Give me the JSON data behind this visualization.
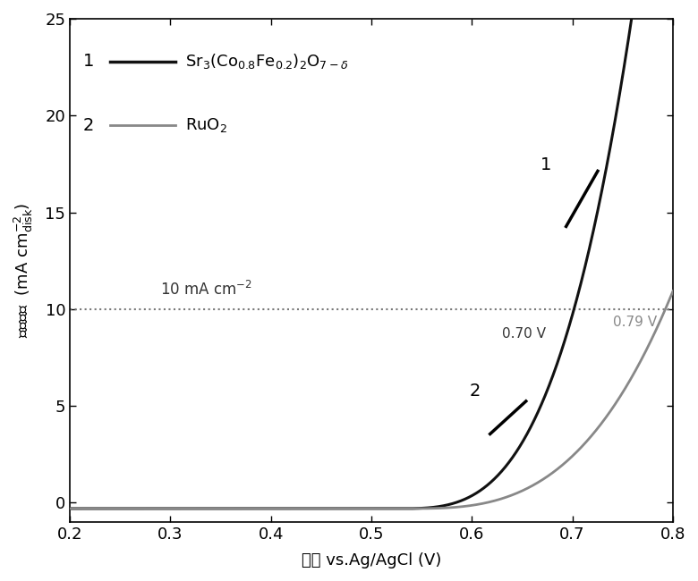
{
  "xlim": [
    0.2,
    0.8
  ],
  "ylim": [
    -1.0,
    25
  ],
  "xticks": [
    0.2,
    0.3,
    0.4,
    0.5,
    0.6,
    0.7,
    0.8
  ],
  "yticks": [
    0,
    5,
    10,
    15,
    20,
    25
  ],
  "curve1_color": "#111111",
  "curve2_color": "#888888",
  "dotted_line_y": 10,
  "dotted_line_color": "#777777",
  "bg_color": "#ffffff"
}
